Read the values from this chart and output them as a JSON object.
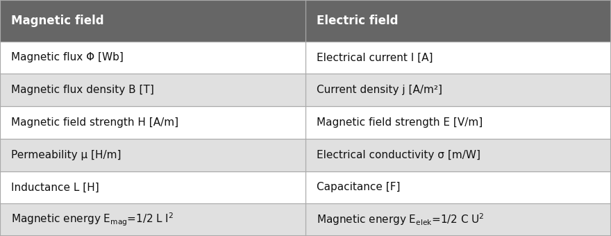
{
  "header": [
    "Magnetic field",
    "Electric field"
  ],
  "rows": [
    [
      "Magnetic flux Φ [Wb]",
      "Electrical current I [A]"
    ],
    [
      "Magnetic flux density B [T]",
      "Current density j [A/m²]"
    ],
    [
      "Magnetic field strength H [A/m]",
      "Magnetic field strength E [V/m]"
    ],
    [
      "Permeability μ [H/m]",
      "Electrical conductivity σ [m/W]"
    ],
    [
      "Inductance L [H]",
      "Capacitance [F]"
    ],
    [
      "Magnetic energy E$_\\mathregular{mag}$=1/2 L I$^2$",
      "Magnetic energy E$_\\mathregular{elek}$=1/2 C U$^2$"
    ]
  ],
  "header_bg": "#666666",
  "header_text_color": "#ffffff",
  "row_bg_even": "#ffffff",
  "row_bg_odd": "#e0e0e0",
  "border_color": "#aaaaaa",
  "text_color": "#111111",
  "header_fontsize": 12,
  "row_fontsize": 11,
  "fig_width": 8.8,
  "fig_height": 3.4,
  "col_split": 0.5
}
